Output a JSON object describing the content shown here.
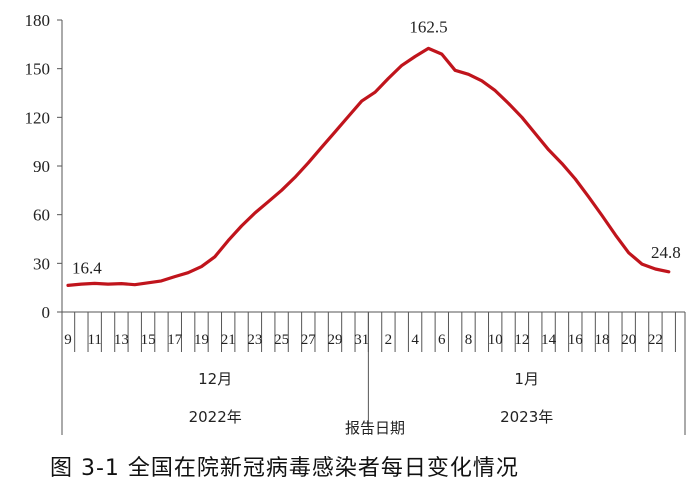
{
  "caption": "图 3-1 全国在院新冠病毒感染者每日变化情况",
  "chart_data": {
    "type": "line",
    "xlabel": "报告日期",
    "ylim": [
      0,
      180
    ],
    "y_ticks": [
      0,
      30,
      60,
      90,
      120,
      150,
      180
    ],
    "grid": false,
    "line_color": "#c0141c",
    "x_tick_labels": [
      "9",
      "11",
      "13",
      "15",
      "17",
      "19",
      "21",
      "23",
      "25",
      "27",
      "29",
      "31",
      "2",
      "4",
      "6",
      "8",
      "10",
      "12",
      "14",
      "16",
      "18",
      "20",
      "22"
    ],
    "month_labels": [
      "12月",
      "1月"
    ],
    "year_labels": [
      "2022年",
      "2023年"
    ],
    "series": [
      {
        "x": [
          "2022-12-09",
          "2022-12-10",
          "2022-12-11",
          "2022-12-12",
          "2022-12-13",
          "2022-12-14",
          "2022-12-15",
          "2022-12-16",
          "2022-12-17",
          "2022-12-18",
          "2022-12-19",
          "2022-12-20",
          "2022-12-21",
          "2022-12-22",
          "2022-12-23",
          "2022-12-24",
          "2022-12-25",
          "2022-12-26",
          "2022-12-27",
          "2022-12-28",
          "2022-12-29",
          "2022-12-30",
          "2022-12-31",
          "2023-01-01",
          "2023-01-02",
          "2023-01-03",
          "2023-01-04",
          "2023-01-05",
          "2023-01-06",
          "2023-01-07",
          "2023-01-08",
          "2023-01-09",
          "2023-01-10",
          "2023-01-11",
          "2023-01-12",
          "2023-01-13",
          "2023-01-14",
          "2023-01-15",
          "2023-01-16",
          "2023-01-17",
          "2023-01-18",
          "2023-01-19",
          "2023-01-20",
          "2023-01-21",
          "2023-01-22",
          "2023-01-23"
        ],
        "values": [
          16.4,
          17.2,
          17.6,
          17.2,
          17.5,
          16.8,
          18.0,
          19.2,
          21.8,
          24.2,
          28.0,
          34.0,
          44.0,
          53.0,
          61.0,
          68.0,
          75.0,
          83.0,
          92.0,
          101.5,
          111.0,
          120.5,
          130.0,
          135.5,
          144.0,
          152.0,
          157.5,
          162.5,
          159.0,
          149.0,
          146.5,
          142.5,
          136.5,
          128.5,
          120.0,
          110.0,
          100.0,
          91.5,
          82.0,
          71.0,
          59.5,
          47.5,
          36.5,
          29.5,
          26.5,
          24.8
        ]
      }
    ],
    "data_labels": [
      {
        "index": 0,
        "text": "16.4"
      },
      {
        "index": 27,
        "text": "162.5"
      },
      {
        "index": 45,
        "text": "24.8"
      }
    ]
  }
}
